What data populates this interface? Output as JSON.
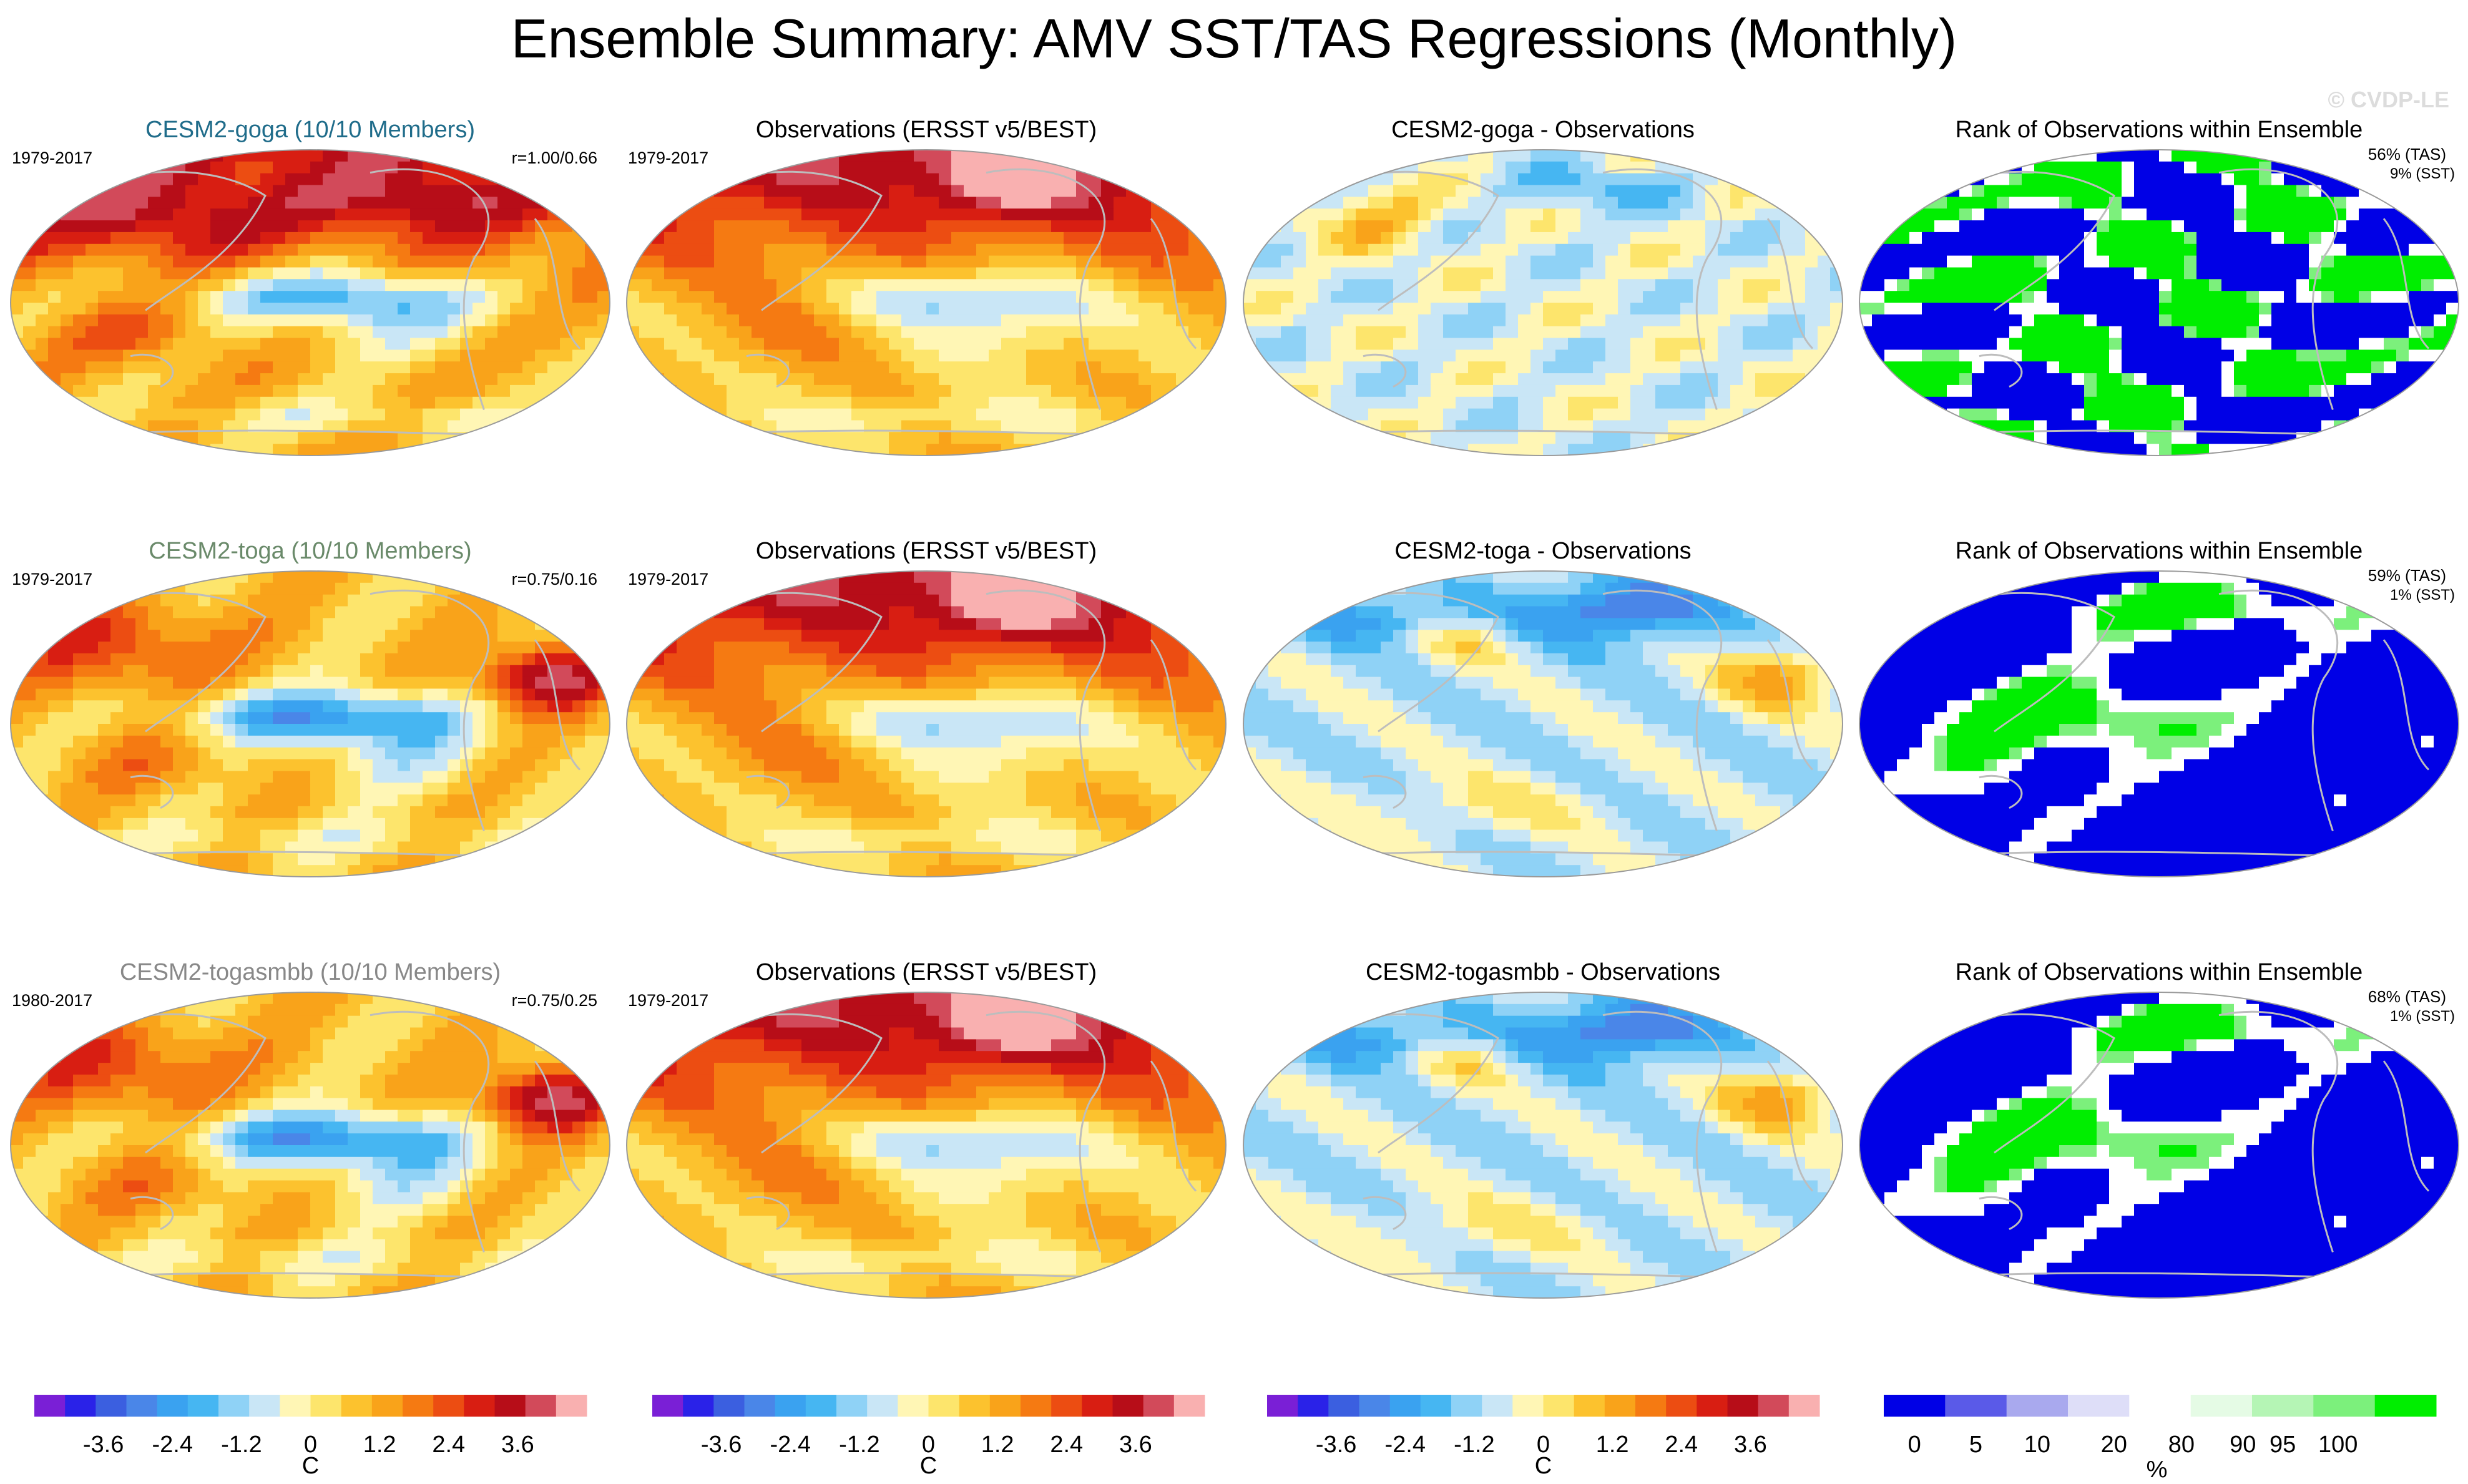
{
  "figure": {
    "title": "Ensemble Summary: AMV SST/TAS Regressions (Monthly)",
    "watermark": "© CVDP-LE"
  },
  "colors": {
    "model_row_titles": [
      "#1f6c8a",
      "#6a8a6a",
      "#888888"
    ],
    "diverging_scale": [
      "#7a1fd6",
      "#2a22e8",
      "#3b5fe0",
      "#4a86e8",
      "#3aa2f0",
      "#46b6f2",
      "#8fd2f6",
      "#c9e6f6",
      "#fff6b5",
      "#fde56c",
      "#fcc22e",
      "#f9a31a",
      "#f57a12",
      "#ec4d12",
      "#d81e12",
      "#b70d18",
      "#d24a5a",
      "#f9b0b0"
    ],
    "rank_scale": [
      "#0000e6",
      "#5a5ae8",
      "#a9a9ee",
      "#dedef8",
      "#ffffff",
      "#e5fbe5",
      "#b5f5b5",
      "#7cf07c",
      "#00ee00"
    ],
    "land_outline": "#bdbdbd"
  },
  "chart_data": [
    {
      "row": 0,
      "col": 0,
      "type": "heatmap",
      "title": "CESM2-goga (10/10 Members)",
      "period": "1979-2017",
      "pattern_corr": "r=1.00/0.66",
      "pattern": "warm_north_cool_tropical_pacific",
      "units": "C"
    },
    {
      "row": 0,
      "col": 1,
      "type": "heatmap",
      "title": "Observations (ERSST v5/BEST)",
      "period": "1979-2017",
      "pattern": "obs",
      "units": "C"
    },
    {
      "row": 0,
      "col": 2,
      "type": "heatmap",
      "title": "CESM2-goga - Observations",
      "pattern": "diff_weak",
      "units": "C"
    },
    {
      "row": 0,
      "col": 3,
      "type": "heatmap",
      "title": "Rank of Observations within Ensemble",
      "rank_tas": "56% (TAS)",
      "rank_sst": "9% (SST)",
      "pattern": "rank_mixed",
      "units": "%"
    },
    {
      "row": 1,
      "col": 0,
      "type": "heatmap",
      "title": "CESM2-toga (10/10 Members)",
      "period": "1979-2017",
      "pattern_corr": "r=0.75/0.16",
      "pattern": "warm_atlantic_cool_pacific",
      "units": "C"
    },
    {
      "row": 1,
      "col": 1,
      "type": "heatmap",
      "title": "Observations (ERSST v5/BEST)",
      "period": "1979-2017",
      "pattern": "obs",
      "units": "C"
    },
    {
      "row": 1,
      "col": 2,
      "type": "heatmap",
      "title": "CESM2-toga - Observations",
      "pattern": "diff_strong",
      "units": "C"
    },
    {
      "row": 1,
      "col": 3,
      "type": "heatmap",
      "title": "Rank of Observations within Ensemble",
      "rank_tas": "59% (TAS)",
      "rank_sst": "1% (SST)",
      "pattern": "rank_blue",
      "units": "%"
    },
    {
      "row": 2,
      "col": 0,
      "type": "heatmap",
      "title": "CESM2-togasmbb (10/10 Members)",
      "period": "1980-2017",
      "pattern_corr": "r=0.75/0.25",
      "pattern": "warm_atlantic_cool_pacific",
      "units": "C"
    },
    {
      "row": 2,
      "col": 1,
      "type": "heatmap",
      "title": "Observations (ERSST v5/BEST)",
      "period": "1979-2017",
      "pattern": "obs",
      "units": "C"
    },
    {
      "row": 2,
      "col": 2,
      "type": "heatmap",
      "title": "CESM2-togasmbb - Observations",
      "pattern": "diff_strong",
      "units": "C"
    },
    {
      "row": 2,
      "col": 3,
      "type": "heatmap",
      "title": "Rank of Observations within Ensemble",
      "rank_tas": "68% (TAS)",
      "rank_sst": "1% (SST)",
      "pattern": "rank_blue",
      "units": "%"
    }
  ],
  "colorbars": [
    {
      "type": "diverging",
      "ticks": [
        "-3.6",
        "-2.4",
        "-1.2",
        "0",
        "1.2",
        "2.4",
        "3.6"
      ],
      "tick_values": [
        -3.6,
        -2.4,
        -1.2,
        0,
        1.2,
        2.4,
        3.6
      ],
      "min": -4.8,
      "max": 4.8,
      "label": "C"
    },
    {
      "type": "diverging",
      "ticks": [
        "-3.6",
        "-2.4",
        "-1.2",
        "0",
        "1.2",
        "2.4",
        "3.6"
      ],
      "tick_values": [
        -3.6,
        -2.4,
        -1.2,
        0,
        1.2,
        2.4,
        3.6
      ],
      "min": -4.8,
      "max": 4.8,
      "label": "C"
    },
    {
      "type": "diverging",
      "ticks": [
        "-3.6",
        "-2.4",
        "-1.2",
        "0",
        "1.2",
        "2.4",
        "3.6"
      ],
      "tick_values": [
        -3.6,
        -2.4,
        -1.2,
        0,
        1.2,
        2.4,
        3.6
      ],
      "min": -4.8,
      "max": 4.8,
      "label": "C"
    },
    {
      "type": "rank",
      "ticks": [
        "0",
        "5",
        "10",
        "20",
        "80",
        "90",
        "95",
        "100"
      ],
      "label": "%"
    }
  ]
}
